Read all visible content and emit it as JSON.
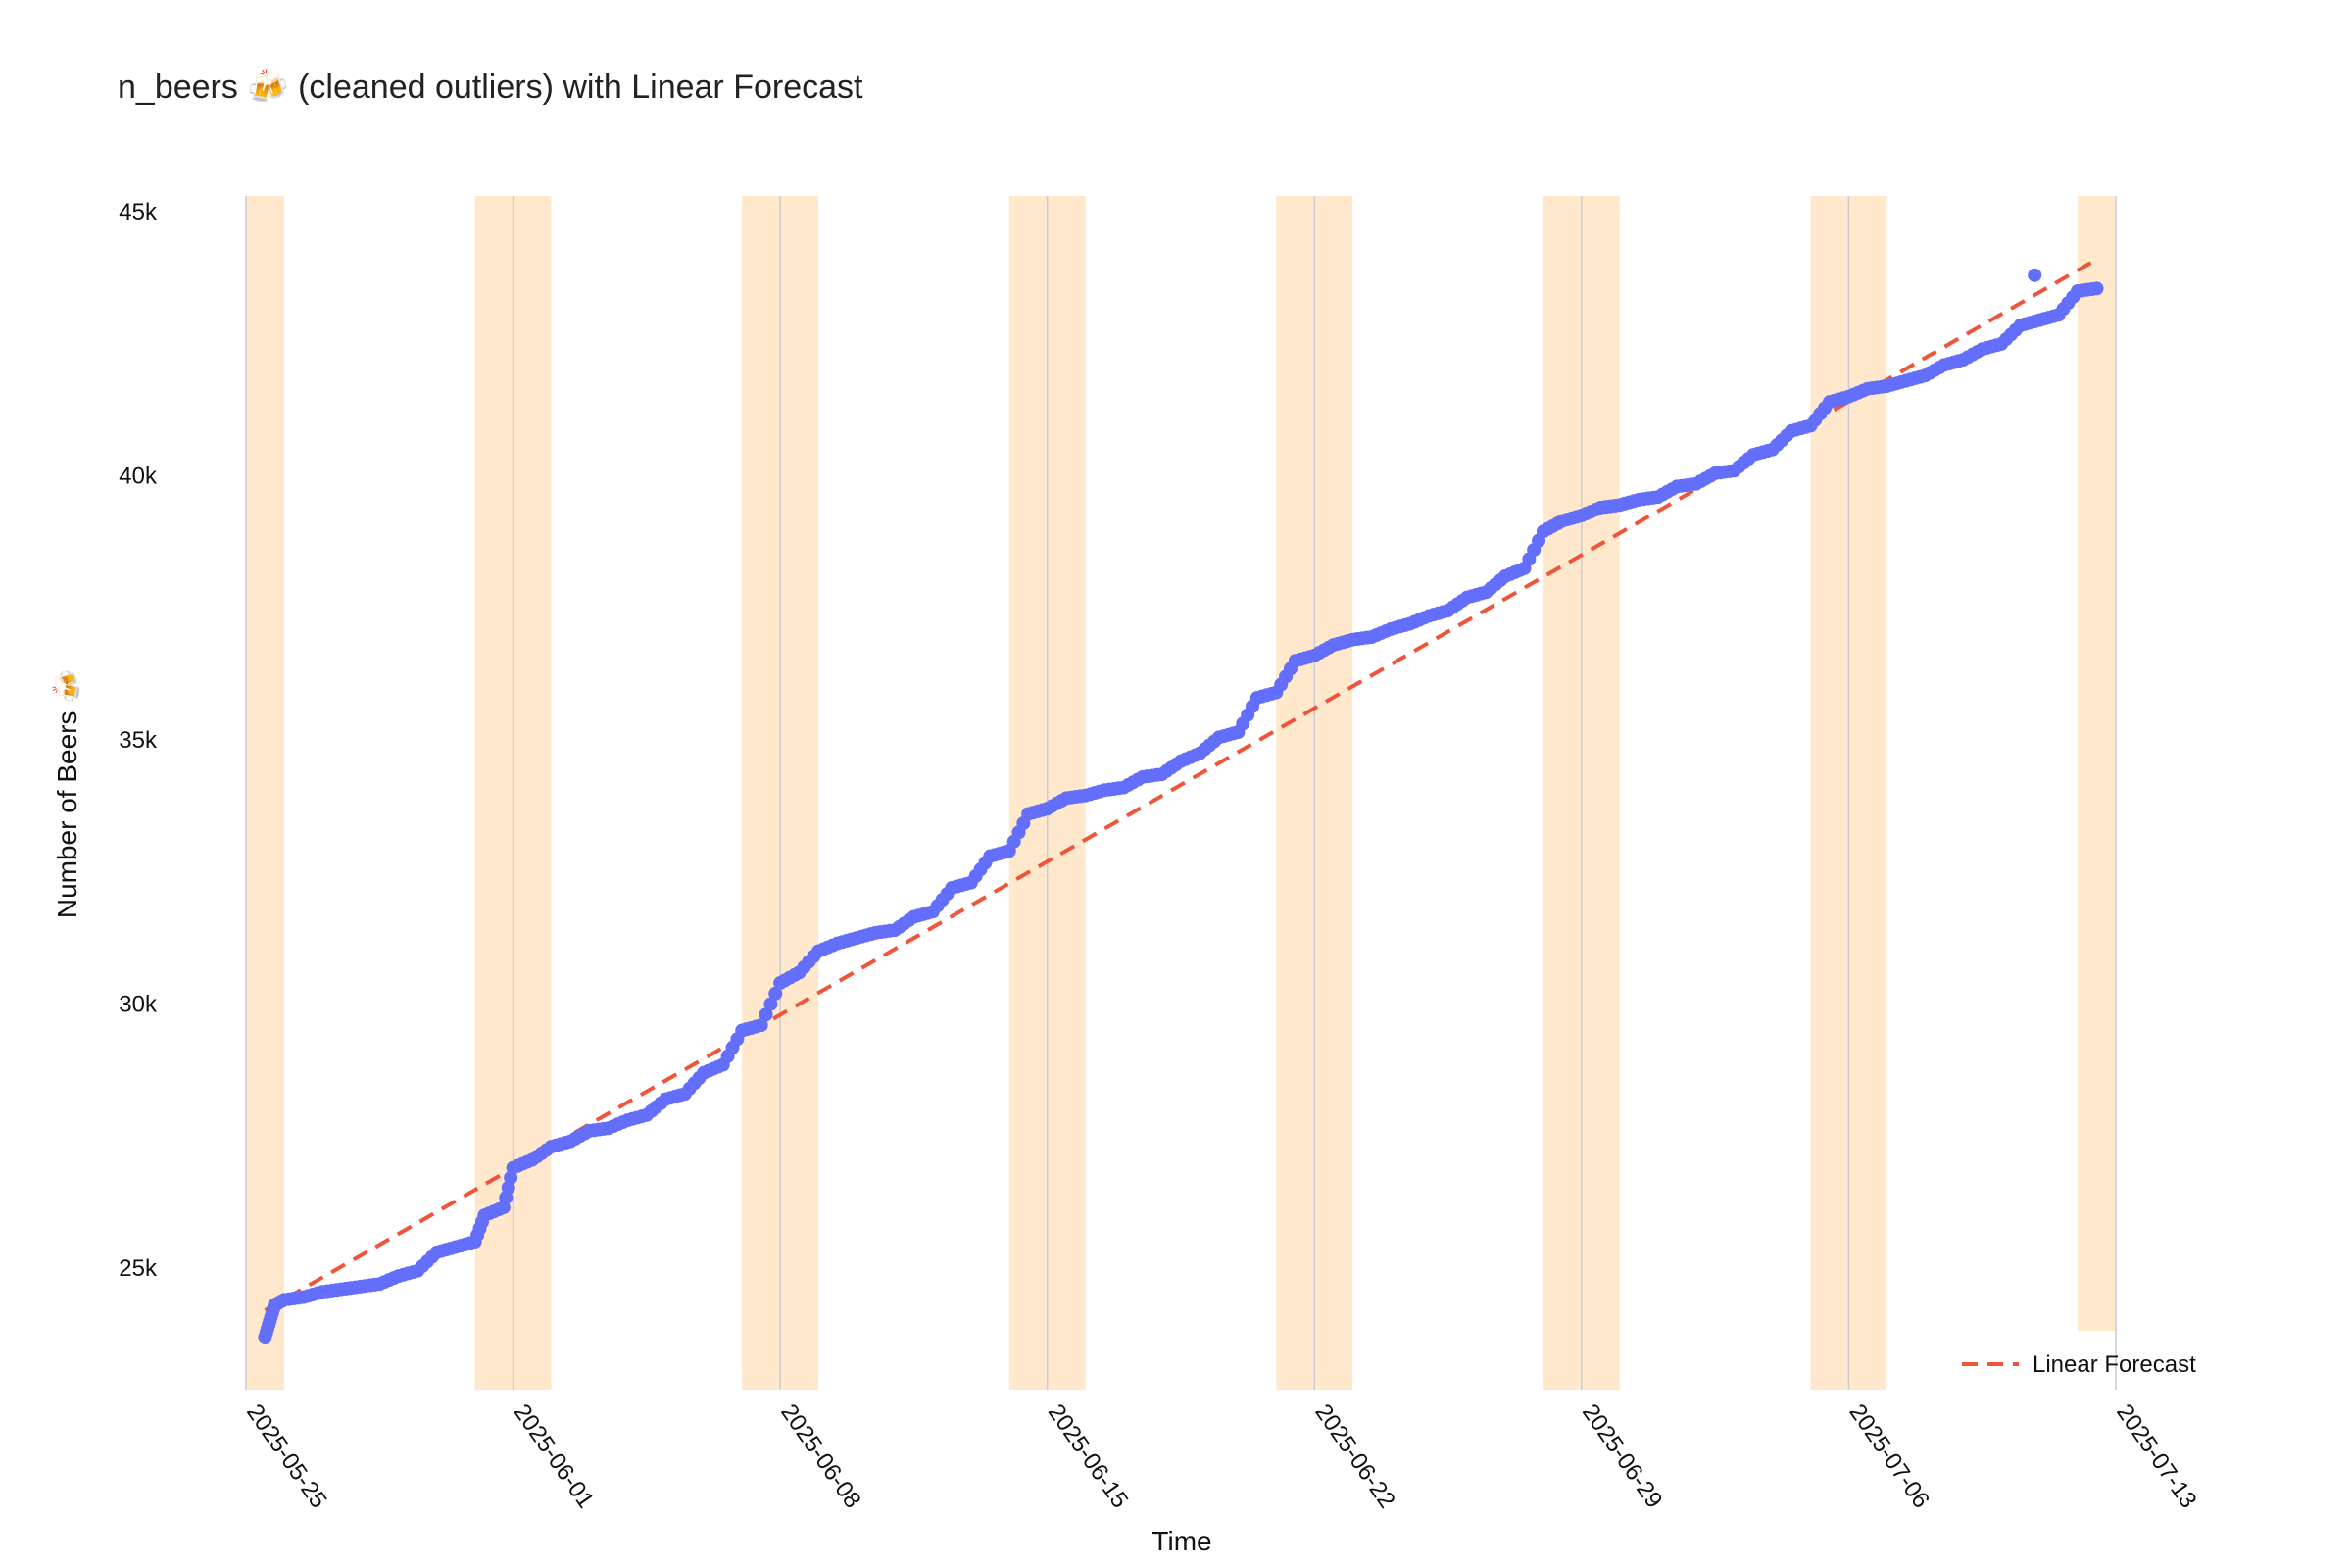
{
  "chart_data": {
    "type": "scatter",
    "title": "n_beers 🍻 (cleaned outliers) with Linear Forecast",
    "xlabel": "Time",
    "ylabel": "Number of Beers 🍻",
    "x_tick_labels": [
      "2025-05-25",
      "2025-06-01",
      "2025-06-08",
      "2025-06-15",
      "2025-06-22",
      "2025-06-29",
      "2025-07-06",
      "2025-07-13"
    ],
    "y_tick_labels": [
      "25k",
      "30k",
      "35k",
      "40k",
      "45k"
    ],
    "y_ticks": [
      25000,
      30000,
      35000,
      40000,
      45000
    ],
    "x_range": [
      "2025-05-25",
      "2025-07-13"
    ],
    "ylim": [
      22700,
      45300
    ],
    "grid": "vertical lines at weekly ticks",
    "legend_position": "bottom-right",
    "weekend_shading": [
      [
        "2025-05-25",
        "2025-05-26"
      ],
      [
        "2025-05-31",
        "2025-06-02"
      ],
      [
        "2025-06-07",
        "2025-06-09"
      ],
      [
        "2025-06-14",
        "2025-06-16"
      ],
      [
        "2025-06-21",
        "2025-06-23"
      ],
      [
        "2025-06-28",
        "2025-06-30"
      ],
      [
        "2025-07-05",
        "2025-07-07"
      ],
      [
        "2025-07-12",
        "2025-07-13"
      ]
    ],
    "series": [
      {
        "color": "#636efa",
        "mode": "markers",
        "points": [
          [
            "2025-05-25T12:00",
            23700
          ],
          [
            "2025-05-25T15:00",
            24000
          ],
          [
            "2025-05-25T18:00",
            24300
          ],
          [
            "2025-05-26T00:00",
            24400
          ],
          [
            "2025-05-26T12:00",
            24450
          ],
          [
            "2025-05-27T00:00",
            24550
          ],
          [
            "2025-05-27T12:00",
            24600
          ],
          [
            "2025-05-28T00:00",
            24650
          ],
          [
            "2025-05-28T12:00",
            24700
          ],
          [
            "2025-05-29T00:00",
            24850
          ],
          [
            "2025-05-29T12:00",
            24950
          ],
          [
            "2025-05-30T00:00",
            25300
          ],
          [
            "2025-05-30T12:00",
            25400
          ],
          [
            "2025-05-31T00:00",
            25500
          ],
          [
            "2025-05-31T06:00",
            26000
          ],
          [
            "2025-05-31T18:00",
            26150
          ],
          [
            "2025-06-01T00:00",
            26900
          ],
          [
            "2025-06-01T12:00",
            27050
          ],
          [
            "2025-06-02T00:00",
            27300
          ],
          [
            "2025-06-02T12:00",
            27400
          ],
          [
            "2025-06-03T00:00",
            27600
          ],
          [
            "2025-06-03T12:00",
            27650
          ],
          [
            "2025-06-04T00:00",
            27800
          ],
          [
            "2025-06-04T12:00",
            27900
          ],
          [
            "2025-06-05T00:00",
            28200
          ],
          [
            "2025-06-05T12:00",
            28300
          ],
          [
            "2025-06-06T00:00",
            28700
          ],
          [
            "2025-06-06T12:00",
            28850
          ],
          [
            "2025-06-07T00:00",
            29500
          ],
          [
            "2025-06-07T12:00",
            29600
          ],
          [
            "2025-06-08T00:00",
            30400
          ],
          [
            "2025-06-08T12:00",
            30600
          ],
          [
            "2025-06-09T00:00",
            31000
          ],
          [
            "2025-06-09T12:00",
            31150
          ],
          [
            "2025-06-10T00:00",
            31250
          ],
          [
            "2025-06-10T12:00",
            31350
          ],
          [
            "2025-06-11T00:00",
            31400
          ],
          [
            "2025-06-11T12:00",
            31650
          ],
          [
            "2025-06-12T00:00",
            31750
          ],
          [
            "2025-06-12T12:00",
            32200
          ],
          [
            "2025-06-13T00:00",
            32300
          ],
          [
            "2025-06-13T12:00",
            32800
          ],
          [
            "2025-06-14T00:00",
            32900
          ],
          [
            "2025-06-14T12:00",
            33600
          ],
          [
            "2025-06-15T00:00",
            33700
          ],
          [
            "2025-06-15T12:00",
            33900
          ],
          [
            "2025-06-16T00:00",
            33950
          ],
          [
            "2025-06-16T12:00",
            34050
          ],
          [
            "2025-06-17T00:00",
            34100
          ],
          [
            "2025-06-17T12:00",
            34300
          ],
          [
            "2025-06-18T00:00",
            34350
          ],
          [
            "2025-06-18T12:00",
            34600
          ],
          [
            "2025-06-19T00:00",
            34750
          ],
          [
            "2025-06-19T12:00",
            35050
          ],
          [
            "2025-06-20T00:00",
            35150
          ],
          [
            "2025-06-20T12:00",
            35800
          ],
          [
            "2025-06-21T00:00",
            35900
          ],
          [
            "2025-06-21T12:00",
            36500
          ],
          [
            "2025-06-22T00:00",
            36600
          ],
          [
            "2025-06-22T12:00",
            36800
          ],
          [
            "2025-06-23T00:00",
            36900
          ],
          [
            "2025-06-23T12:00",
            36950
          ],
          [
            "2025-06-24T00:00",
            37100
          ],
          [
            "2025-06-24T12:00",
            37200
          ],
          [
            "2025-06-25T00:00",
            37350
          ],
          [
            "2025-06-25T12:00",
            37450
          ],
          [
            "2025-06-26T00:00",
            37700
          ],
          [
            "2025-06-26T12:00",
            37800
          ],
          [
            "2025-06-27T00:00",
            38100
          ],
          [
            "2025-06-27T12:00",
            38250
          ],
          [
            "2025-06-28T00:00",
            38950
          ],
          [
            "2025-06-28T12:00",
            39150
          ],
          [
            "2025-06-29T00:00",
            39250
          ],
          [
            "2025-06-29T12:00",
            39400
          ],
          [
            "2025-06-30T00:00",
            39450
          ],
          [
            "2025-06-30T12:00",
            39550
          ],
          [
            "2025-07-01T00:00",
            39600
          ],
          [
            "2025-07-01T12:00",
            39800
          ],
          [
            "2025-07-02T00:00",
            39850
          ],
          [
            "2025-07-02T12:00",
            40050
          ],
          [
            "2025-07-03T00:00",
            40100
          ],
          [
            "2025-07-03T12:00",
            40400
          ],
          [
            "2025-07-04T00:00",
            40500
          ],
          [
            "2025-07-04T12:00",
            40850
          ],
          [
            "2025-07-05T00:00",
            40950
          ],
          [
            "2025-07-05T12:00",
            41400
          ],
          [
            "2025-07-06T00:00",
            41500
          ],
          [
            "2025-07-06T12:00",
            41650
          ],
          [
            "2025-07-07T00:00",
            41700
          ],
          [
            "2025-07-07T12:00",
            41800
          ],
          [
            "2025-07-08T00:00",
            41900
          ],
          [
            "2025-07-08T12:00",
            42100
          ],
          [
            "2025-07-09T00:00",
            42200
          ],
          [
            "2025-07-09T12:00",
            42400
          ],
          [
            "2025-07-10T00:00",
            42500
          ],
          [
            "2025-07-10T12:00",
            42850
          ],
          [
            "2025-07-11T00:00",
            42950
          ],
          [
            "2025-07-11T12:00",
            43050
          ],
          [
            "2025-07-12T00:00",
            43500
          ],
          [
            "2025-07-12T12:00",
            43550
          ],
          [
            "2025-07-10T21:00",
            43800
          ]
        ]
      },
      {
        "name": "Linear Forecast",
        "color": "#ef553b",
        "mode": "dashed-line",
        "points": [
          [
            "2025-05-25T12:00",
            24200
          ],
          [
            "2025-07-12T12:00",
            44100
          ]
        ]
      }
    ]
  }
}
